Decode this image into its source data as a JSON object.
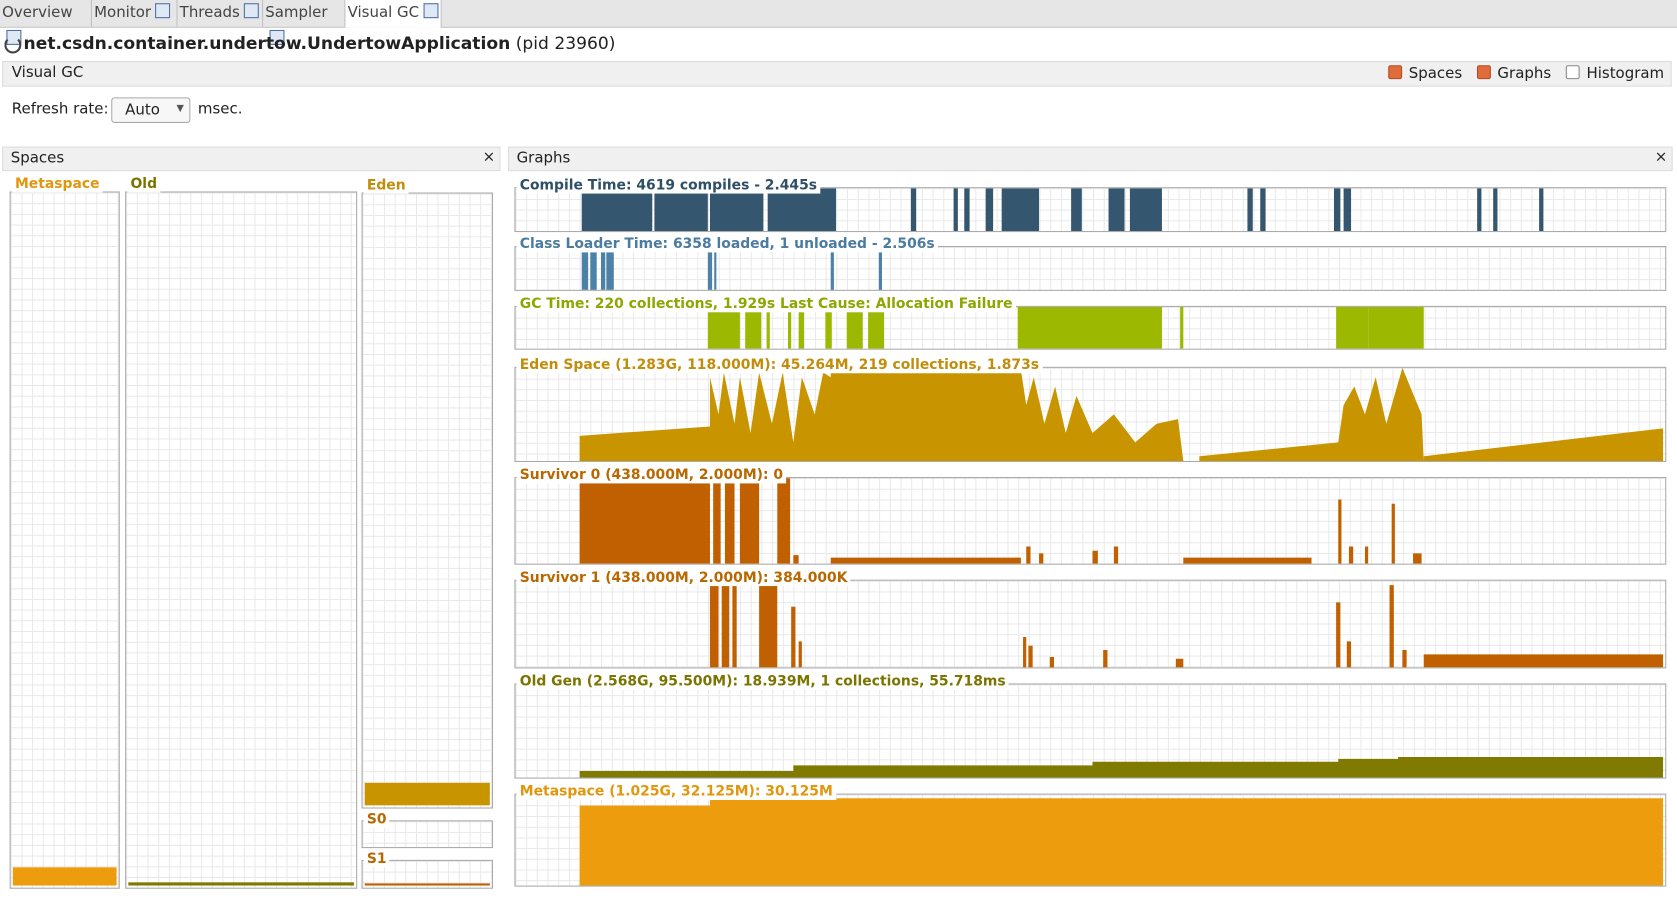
{
  "tabs": [
    {
      "label": "Overview"
    },
    {
      "label": "Monitor"
    },
    {
      "label": "Threads"
    },
    {
      "label": "Sampler"
    },
    {
      "label": "Visual GC"
    }
  ],
  "active_tab": 4,
  "app": {
    "name": "net.csdn.container.undertow.UndertowApplication",
    "pid": "(pid 23960)"
  },
  "toolbar": {
    "title": "Visual GC",
    "options": [
      {
        "label": "Spaces",
        "checked": true
      },
      {
        "label": "Graphs",
        "checked": true
      },
      {
        "label": "Histogram",
        "checked": false
      }
    ]
  },
  "refresh": {
    "label": "Refresh rate:",
    "value": "Auto",
    "unit": "msec."
  },
  "spaces_panel": {
    "title": "Spaces",
    "metaspace": "Metaspace",
    "old": "Old",
    "eden": "Eden",
    "s0": "S0",
    "s1": "S1"
  },
  "graphs_panel": {
    "title": "Graphs",
    "graphs": [
      {
        "title": "Compile Time: 4619 compiles - 2.445s",
        "color": "#34566e",
        "title_color": "#2f4f66"
      },
      {
        "title": "Class Loader Time: 6358 loaded, 1 unloaded - 2.506s",
        "color": "#4d82a8",
        "title_color": "#4a7ba0"
      },
      {
        "title": "GC Time: 220 collections, 1.929s  Last Cause: Allocation Failure",
        "color": "#9cb800",
        "title_color": "#8ea600"
      },
      {
        "title": "Eden Space (1.283G, 118.000M): 45.264M, 219 collections, 1.873s",
        "color": "#c89400",
        "title_color": "#c38d0c"
      },
      {
        "title": "Survivor 0 (438.000M, 2.000M): 0",
        "color": "#c06000",
        "title_color": "#b86800"
      },
      {
        "title": "Survivor 1 (438.000M, 2.000M): 384.000K",
        "color": "#c06000",
        "title_color": "#b86800"
      },
      {
        "title": "Old Gen (2.568G, 95.500M): 18.939M, 1 collections, 55.718ms",
        "color": "#807a00",
        "title_color": "#7a7400"
      },
      {
        "title": "Metaspace (1.025G, 32.125M): 30.125M",
        "color": "#ec9c0c",
        "title_color": "#e2960e"
      }
    ]
  }
}
